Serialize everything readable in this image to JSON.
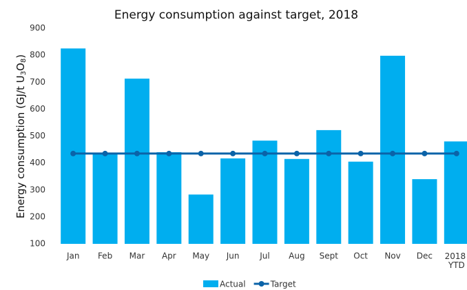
{
  "chart_data": {
    "type": "bar_line",
    "title": "Energy consumption against target, 2018",
    "y_label_parts": [
      "Energy consumption (GJ/t U",
      "3",
      "O",
      "8",
      ")"
    ],
    "categories": [
      "Jan",
      "Feb",
      "Mar",
      "Apr",
      "May",
      "Jun",
      "Jul",
      "Aug",
      "Sept",
      "Oct",
      "Nov",
      "Dec",
      "2018 YTD"
    ],
    "series": [
      {
        "name": "Actual",
        "type": "bar",
        "color": "#00aeef",
        "values": [
          825,
          435,
          713,
          440,
          283,
          417,
          483,
          415,
          522,
          405,
          798,
          340,
          480
        ]
      },
      {
        "name": "Target",
        "type": "line",
        "color": "#0b63a8",
        "values": [
          435,
          435,
          435,
          435,
          435,
          435,
          435,
          435,
          435,
          435,
          435,
          435,
          435
        ]
      }
    ],
    "ylim": [
      100,
      900
    ],
    "yticks": [
      100,
      200,
      300,
      400,
      500,
      600,
      700,
      800,
      900
    ],
    "grid": false,
    "legend": "bottom"
  }
}
